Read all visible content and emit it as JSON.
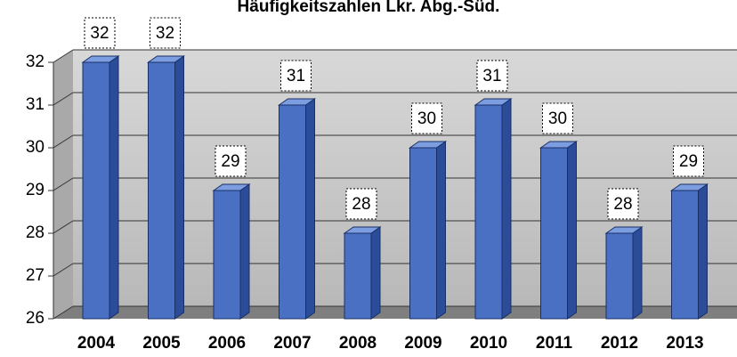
{
  "chart_data": {
    "type": "bar",
    "title": "Häufigkeitszahlen Lkr. Abg.-Süd.",
    "categories": [
      "2004",
      "2005",
      "2006",
      "2007",
      "2008",
      "2009",
      "2010",
      "2011",
      "2012",
      "2013"
    ],
    "values": [
      32,
      32,
      29,
      31,
      28,
      30,
      31,
      30,
      28,
      29
    ],
    "color": "#4a70c4",
    "ylim": [
      26,
      32
    ],
    "yticks": [
      26,
      27,
      28,
      29,
      30,
      31,
      32
    ],
    "grid": true
  }
}
